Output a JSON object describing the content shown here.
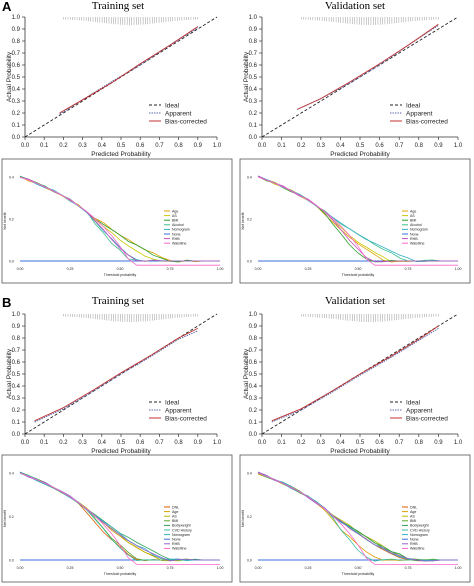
{
  "panels": [
    {
      "label": "A",
      "calibration": [
        {
          "title": "Training set",
          "type": "line",
          "xlabel": "Predicted Probability",
          "ylabel": "Actual Probability",
          "xlim": [
            0,
            1
          ],
          "ylim": [
            0,
            1
          ],
          "ticks": [
            "0.0",
            "0.1",
            "0.2",
            "0.3",
            "0.4",
            "0.5",
            "0.6",
            "0.7",
            "0.8",
            "0.9",
            "1.0"
          ],
          "legend": [
            "Ideal",
            "Apparent",
            "Bias-corrected"
          ],
          "series": [
            {
              "name": "Apparent",
              "color": "#5b6eae",
              "x": [
                0.18,
                0.3,
                0.45,
                0.6,
                0.75,
                0.9
              ],
              "y": [
                0.19,
                0.31,
                0.46,
                0.6,
                0.76,
                0.91
              ]
            },
            {
              "name": "Bias-corrected",
              "color": "#c03030",
              "x": [
                0.18,
                0.3,
                0.45,
                0.6,
                0.75,
                0.9
              ],
              "y": [
                0.2,
                0.31,
                0.45,
                0.61,
                0.76,
                0.92
              ]
            }
          ]
        },
        {
          "title": "Validation set",
          "type": "line",
          "xlabel": "Predicted Probability",
          "ylabel": "Actual Probability",
          "xlim": [
            0,
            1
          ],
          "ylim": [
            0,
            1
          ],
          "ticks": [
            "0.0",
            "0.1",
            "0.2",
            "0.3",
            "0.4",
            "0.5",
            "0.6",
            "0.7",
            "0.8",
            "0.9",
            "1.0"
          ],
          "legend": [
            "Ideal",
            "Apparent",
            "Bias-corrected"
          ],
          "series": [
            {
              "name": "Apparent",
              "color": "#5b6eae",
              "x": [
                0.18,
                0.3,
                0.45,
                0.6,
                0.75,
                0.9
              ],
              "y": [
                0.23,
                0.32,
                0.45,
                0.6,
                0.77,
                0.93
              ]
            },
            {
              "name": "Bias-corrected",
              "color": "#c03030",
              "x": [
                0.18,
                0.3,
                0.45,
                0.6,
                0.75,
                0.9
              ],
              "y": [
                0.23,
                0.32,
                0.46,
                0.61,
                0.77,
                0.94
              ]
            }
          ]
        }
      ],
      "dca_legend": [
        "Age",
        "AS",
        "BMI",
        "Alcohol",
        "Nomogram",
        "None",
        "RHB",
        "Waistline"
      ],
      "dca_colors": [
        "#e0a000",
        "#c8c800",
        "#2aa12a",
        "#3bbf8a",
        "#2fb0c8",
        "#3a6fdc",
        "#c050c0",
        "#ff66cc"
      ],
      "dca_xticks": [
        "0.00",
        "0.25",
        "0.50",
        "0.75",
        "1.00"
      ],
      "dca_xlabel": "Threshold probability",
      "dca_ylabel": "Net benefit",
      "dca_yticks": [
        "0.0",
        "0.2",
        "0.4"
      ]
    },
    {
      "label": "B",
      "calibration": [
        {
          "title": "Training set",
          "type": "line",
          "xlabel": "Predicted Probability",
          "ylabel": "Actual Probability",
          "xlim": [
            0,
            1
          ],
          "ylim": [
            0,
            1
          ],
          "ticks": [
            "0.0",
            "0.1",
            "0.2",
            "0.3",
            "0.4",
            "0.5",
            "0.6",
            "0.7",
            "0.8",
            "0.9",
            "1.0"
          ],
          "legend": [
            "Ideal",
            "Apparent",
            "Bias-corrected"
          ],
          "series": [
            {
              "name": "Apparent",
              "color": "#5b6eae",
              "x": [
                0.05,
                0.2,
                0.35,
                0.5,
                0.65,
                0.8,
                0.9
              ],
              "y": [
                0.1,
                0.21,
                0.35,
                0.5,
                0.64,
                0.79,
                0.86
              ]
            },
            {
              "name": "Bias-corrected",
              "color": "#c03030",
              "x": [
                0.05,
                0.2,
                0.35,
                0.5,
                0.65,
                0.8,
                0.9
              ],
              "y": [
                0.11,
                0.22,
                0.36,
                0.51,
                0.65,
                0.8,
                0.88
              ]
            }
          ]
        },
        {
          "title": "Validation set",
          "type": "line",
          "xlabel": "Predicted Probability",
          "ylabel": "Actual Probability",
          "xlim": [
            0,
            1
          ],
          "ylim": [
            0,
            1
          ],
          "ticks": [
            "0.0",
            "0.1",
            "0.2",
            "0.3",
            "0.4",
            "0.5",
            "0.6",
            "0.7",
            "0.8",
            "0.9",
            "1.0"
          ],
          "legend": [
            "Ideal",
            "Apparent",
            "Bias-corrected"
          ],
          "series": [
            {
              "name": "Apparent",
              "color": "#5b6eae",
              "x": [
                0.05,
                0.2,
                0.35,
                0.5,
                0.65,
                0.8,
                0.9
              ],
              "y": [
                0.1,
                0.2,
                0.34,
                0.49,
                0.63,
                0.78,
                0.88
              ]
            },
            {
              "name": "Bias-corrected",
              "color": "#c03030",
              "x": [
                0.05,
                0.2,
                0.35,
                0.5,
                0.65,
                0.8,
                0.9
              ],
              "y": [
                0.11,
                0.21,
                0.35,
                0.5,
                0.64,
                0.79,
                0.9
              ]
            }
          ]
        }
      ],
      "dca_legend": [
        "DNL",
        "Age",
        "AS",
        "BMI",
        "Bodyweight",
        "CVD History",
        "Nomogram",
        "None",
        "RHB",
        "Waistline"
      ],
      "dca_colors": [
        "#e05a00",
        "#d8a000",
        "#b8b800",
        "#5aa82a",
        "#2aa15a",
        "#3bbfa0",
        "#2fb0c8",
        "#3a6fdc",
        "#9060d0",
        "#ff66cc"
      ],
      "dca_xticks": [
        "0.00",
        "0.25",
        "0.50",
        "0.75",
        "1.00"
      ],
      "dca_xlabel": "Threshold probability",
      "dca_ylabel": "Net benefit",
      "dca_yticks": [
        "0.0",
        "0.2",
        "0.4"
      ]
    }
  ]
}
